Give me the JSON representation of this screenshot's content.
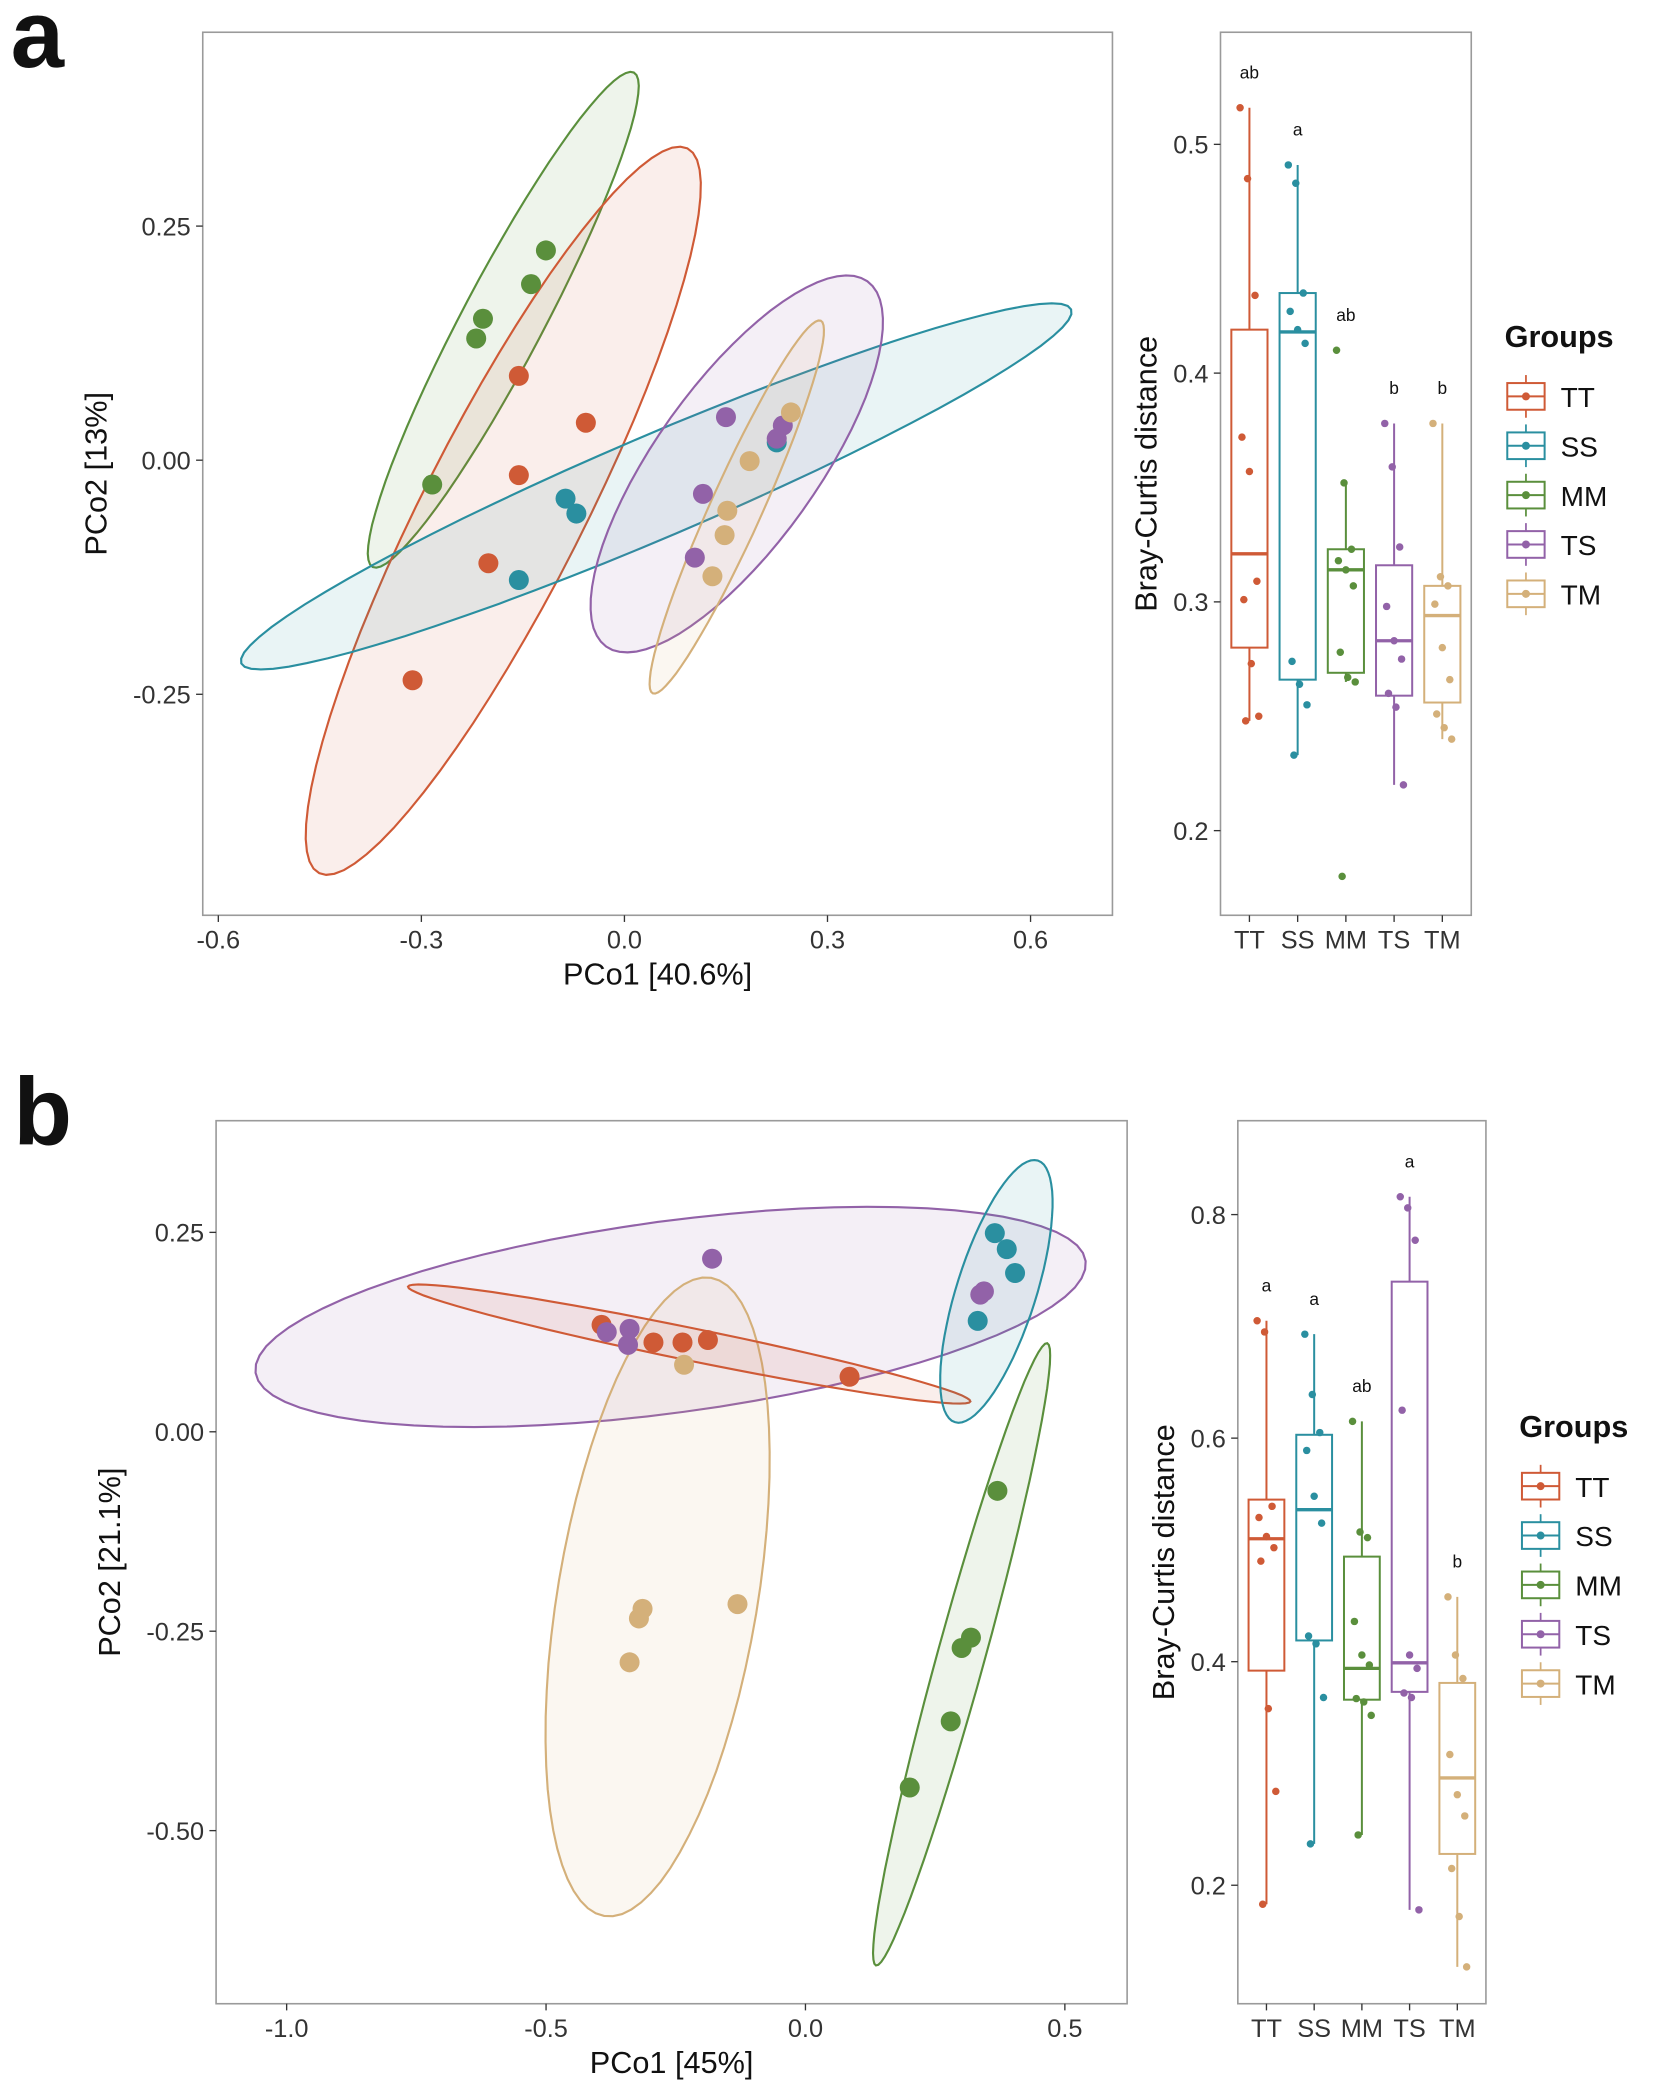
{
  "groups": [
    {
      "name": "TT",
      "color": "#cf5a36"
    },
    {
      "name": "SS",
      "color": "#2a8fa0"
    },
    {
      "name": "MM",
      "color": "#5a8f3c"
    },
    {
      "name": "TS",
      "color": "#9262a8"
    },
    {
      "name": "TM",
      "color": "#d4b07a"
    }
  ],
  "legend_title": "Groups",
  "chart_data": [
    {
      "panel": "a",
      "type": "scatter",
      "xlabel": "PCo1 [40.6%]",
      "ylabel": "PCo2 [13%]",
      "xlim": [
        -0.623,
        0.721
      ],
      "ylim": [
        -0.486,
        0.457
      ],
      "xticks": [
        -0.6,
        -0.3,
        0.0,
        0.3,
        0.6
      ],
      "xtick_labels": [
        "-0.6",
        "-0.3",
        "0.0",
        "0.3",
        "0.6"
      ],
      "yticks": [
        0.25,
        0.0,
        -0.25
      ],
      "ytick_labels": [
        "0.25",
        "0.00",
        "-0.25"
      ],
      "points": {
        "TT": [
          [
            -0.156,
            0.09
          ],
          [
            -0.057,
            0.04
          ],
          [
            -0.156,
            -0.016
          ],
          [
            -0.201,
            -0.11
          ],
          [
            -0.313,
            -0.235
          ]
        ],
        "SS": [
          [
            -0.087,
            -0.041
          ],
          [
            -0.071,
            -0.057
          ],
          [
            -0.156,
            -0.128
          ],
          [
            0.225,
            0.019
          ]
        ],
        "MM": [
          [
            -0.116,
            0.224
          ],
          [
            -0.138,
            0.188
          ],
          [
            -0.209,
            0.151
          ],
          [
            -0.219,
            0.13
          ],
          [
            -0.284,
            -0.026
          ]
        ],
        "TS": [
          [
            0.15,
            0.046
          ],
          [
            0.234,
            0.037
          ],
          [
            0.225,
            0.023
          ],
          [
            0.116,
            -0.036
          ],
          [
            0.104,
            -0.104
          ]
        ],
        "TM": [
          [
            0.246,
            0.051
          ],
          [
            0.185,
            -0.001
          ],
          [
            0.152,
            -0.054
          ],
          [
            0.148,
            -0.08
          ],
          [
            0.13,
            -0.124
          ]
        ]
      },
      "ellipses": {
        "MM": {
          "center": [
            -0.179,
            0.15
          ],
          "axis1": [
            0.193,
            0.264
          ],
          "axis2": [
            0.053,
            -0.02
          ]
        },
        "TT": {
          "center": [
            -0.179,
            -0.054
          ],
          "axis1": [
            0.272,
            0.387
          ],
          "axis2": [
            0.106,
            -0.038
          ]
        },
        "SS": {
          "center": [
            0.047,
            -0.028
          ],
          "axis1": [
            0.613,
            0.189
          ],
          "axis2": [
            0.03,
            -0.05
          ]
        },
        "TS": {
          "center": [
            0.166,
            -0.004
          ],
          "axis1": [
            0.193,
            0.195
          ],
          "axis2": [
            0.097,
            -0.05
          ]
        },
        "TM": {
          "center": [
            0.166,
            -0.05
          ],
          "axis1": [
            0.124,
            0.199
          ],
          "axis2": [
            0.035,
            -0.011
          ]
        }
      }
    },
    {
      "panel": "a",
      "type": "box",
      "ylabel": "Bray-Curtis distance",
      "categories": [
        "TT",
        "SS",
        "MM",
        "TS",
        "TM"
      ],
      "ylim": [
        0.163,
        0.549
      ],
      "yticks": [
        0.2,
        0.3,
        0.4,
        0.5
      ],
      "ytick_labels": [
        "0.2",
        "0.3",
        "0.4",
        "0.5"
      ],
      "boxes": [
        {
          "group": "TT",
          "whisker_low": 0.248,
          "q1": 0.28,
          "median": 0.321,
          "q3": 0.419,
          "whisker_high": 0.516,
          "letter": "ab",
          "points": [
            0.516,
            0.485,
            0.434,
            0.372,
            0.357,
            0.309,
            0.301,
            0.273,
            0.25,
            0.248
          ]
        },
        {
          "group": "SS",
          "whisker_low": 0.233,
          "q1": 0.266,
          "median": 0.418,
          "q3": 0.435,
          "whisker_high": 0.491,
          "letter": "a",
          "points": [
            0.491,
            0.483,
            0.435,
            0.427,
            0.419,
            0.413,
            0.274,
            0.264,
            0.255,
            0.233
          ]
        },
        {
          "group": "MM",
          "whisker_low": 0.265,
          "q1": 0.269,
          "median": 0.314,
          "q3": 0.323,
          "whisker_high": 0.352,
          "letter": "ab",
          "points": [
            0.41,
            0.352,
            0.323,
            0.318,
            0.314,
            0.307,
            0.278,
            0.267,
            0.265,
            0.18
          ]
        },
        {
          "group": "TS",
          "whisker_low": 0.22,
          "q1": 0.259,
          "median": 0.283,
          "q3": 0.316,
          "whisker_high": 0.378,
          "letter": "b",
          "points": [
            0.378,
            0.359,
            0.324,
            0.298,
            0.283,
            0.275,
            0.26,
            0.254,
            0.22
          ]
        },
        {
          "group": "TM",
          "whisker_low": 0.24,
          "q1": 0.256,
          "median": 0.294,
          "q3": 0.307,
          "whisker_high": 0.378,
          "letter": "b",
          "points": [
            0.378,
            0.311,
            0.307,
            0.299,
            0.28,
            0.266,
            0.251,
            0.245,
            0.24
          ]
        }
      ]
    },
    {
      "panel": "b",
      "type": "scatter",
      "xlabel": "PCo1 [45%]",
      "ylabel": "PCo2 [21.1%]",
      "xlim": [
        -1.136,
        0.62
      ],
      "ylim": [
        -0.717,
        0.39
      ],
      "xticks": [
        -1.0,
        -0.5,
        0.0,
        0.5
      ],
      "xtick_labels": [
        "-1.0",
        "-0.5",
        "0.0",
        "0.5"
      ],
      "yticks": [
        0.25,
        0.0,
        -0.25,
        -0.5
      ],
      "ytick_labels": [
        "0.25",
        "0.00",
        "-0.25",
        "-0.50"
      ],
      "points": {
        "TT": [
          [
            -0.393,
            0.134
          ],
          [
            -0.293,
            0.112
          ],
          [
            -0.237,
            0.112
          ],
          [
            -0.188,
            0.115
          ],
          [
            0.085,
            0.069
          ]
        ],
        "SS": [
          [
            0.365,
            0.249
          ],
          [
            0.388,
            0.229
          ],
          [
            0.404,
            0.199
          ],
          [
            0.332,
            0.139
          ]
        ],
        "MM": [
          [
            0.37,
            -0.074
          ],
          [
            0.319,
            -0.258
          ],
          [
            0.301,
            -0.271
          ],
          [
            0.28,
            -0.363
          ],
          [
            0.201,
            -0.446
          ]
        ],
        "TS": [
          [
            -0.383,
            0.125
          ],
          [
            -0.339,
            0.129
          ],
          [
            -0.342,
            0.109
          ],
          [
            -0.18,
            0.217
          ],
          [
            0.344,
            0.176
          ],
          [
            0.337,
            0.172
          ]
        ],
        "TM": [
          [
            -0.234,
            0.084
          ],
          [
            -0.314,
            -0.222
          ],
          [
            -0.321,
            -0.234
          ],
          [
            -0.339,
            -0.289
          ],
          [
            -0.131,
            -0.216
          ]
        ]
      },
      "ellipses": {
        "TS": {
          "center": [
            -0.26,
            0.144
          ],
          "axis1": [
            0.8,
            0.07
          ],
          "axis2": [
            0.025,
            -0.119
          ]
        },
        "TM": {
          "center": [
            -0.285,
            -0.207
          ],
          "axis1": [
            0.103,
            0.4
          ],
          "axis2": [
            0.19,
            -0.021
          ]
        },
        "TT": {
          "center": [
            -0.224,
            0.11
          ],
          "axis1": [
            0.542,
            -0.072
          ],
          "axis2": [
            -0.006,
            -0.02
          ]
        },
        "SS": {
          "center": [
            0.368,
            0.176
          ],
          "axis1": [
            0.08,
            0.164
          ],
          "axis2": [
            0.073,
            -0.015
          ]
        },
        "MM": {
          "center": [
            0.301,
            -0.279
          ],
          "axis1": [
            0.165,
            0.39
          ],
          "axis2": [
            0.044,
            -0.008
          ]
        }
      }
    },
    {
      "panel": "b",
      "type": "box",
      "ylabel": "Bray-Curtis distance",
      "categories": [
        "TT",
        "SS",
        "MM",
        "TS",
        "TM"
      ],
      "ylim": [
        0.094,
        0.884
      ],
      "yticks": [
        0.2,
        0.4,
        0.6,
        0.8
      ],
      "ytick_labels": [
        "0.2",
        "0.4",
        "0.6",
        "0.8"
      ],
      "boxes": [
        {
          "group": "TT",
          "whisker_low": 0.183,
          "q1": 0.392,
          "median": 0.51,
          "q3": 0.545,
          "whisker_high": 0.705,
          "letter": "a",
          "points": [
            0.705,
            0.695,
            0.539,
            0.529,
            0.512,
            0.502,
            0.49,
            0.358,
            0.284,
            0.183
          ]
        },
        {
          "group": "SS",
          "whisker_low": 0.237,
          "q1": 0.419,
          "median": 0.536,
          "q3": 0.603,
          "whisker_high": 0.693,
          "letter": "a",
          "points": [
            0.693,
            0.639,
            0.605,
            0.589,
            0.548,
            0.524,
            0.423,
            0.416,
            0.368,
            0.237
          ]
        },
        {
          "group": "MM",
          "whisker_low": 0.245,
          "q1": 0.366,
          "median": 0.394,
          "q3": 0.494,
          "whisker_high": 0.615,
          "letter": "ab",
          "points": [
            0.615,
            0.516,
            0.511,
            0.436,
            0.406,
            0.397,
            0.367,
            0.364,
            0.352,
            0.245
          ]
        },
        {
          "group": "TS",
          "whisker_low": 0.178,
          "q1": 0.373,
          "median": 0.399,
          "q3": 0.74,
          "whisker_high": 0.816,
          "letter": "a",
          "points": [
            0.816,
            0.806,
            0.777,
            0.625,
            0.406,
            0.394,
            0.372,
            0.368,
            0.178
          ]
        },
        {
          "group": "TM",
          "whisker_low": 0.127,
          "q1": 0.228,
          "median": 0.296,
          "q3": 0.381,
          "whisker_high": 0.458,
          "letter": "b",
          "points": [
            0.458,
            0.406,
            0.385,
            0.317,
            0.281,
            0.262,
            0.215,
            0.172,
            0.127
          ]
        }
      ]
    }
  ]
}
